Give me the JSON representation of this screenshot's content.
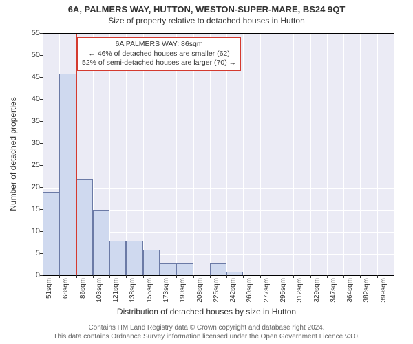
{
  "chart": {
    "title": "6A, PALMERS WAY, HUTTON, WESTON-SUPER-MARE, BS24 9QT",
    "subtitle": "Size of property relative to detached houses in Hutton",
    "type": "histogram",
    "ylabel": "Number of detached properties",
    "xlabel": "Distribution of detached houses by size in Hutton",
    "background_color": "#ebebf5",
    "grid_color": "#ffffff",
    "bar_fill": "#cfd9ef",
    "bar_border": "#6b7aa6",
    "reference_line_color": "#d43a2f",
    "reference_value_index": 2,
    "ylim": [
      0,
      55
    ],
    "ytick_step": 5,
    "yticks": [
      0,
      5,
      10,
      15,
      20,
      25,
      30,
      35,
      40,
      45,
      50,
      55
    ],
    "x_categories": [
      "51sqm",
      "68sqm",
      "86sqm",
      "103sqm",
      "121sqm",
      "138sqm",
      "155sqm",
      "173sqm",
      "190sqm",
      "208sqm",
      "225sqm",
      "242sqm",
      "260sqm",
      "277sqm",
      "295sqm",
      "312sqm",
      "329sqm",
      "347sqm",
      "364sqm",
      "382sqm",
      "399sqm"
    ],
    "values": [
      19,
      46,
      22,
      15,
      8,
      8,
      6,
      3,
      3,
      0,
      3,
      1,
      0,
      0,
      0,
      0,
      0,
      0,
      0,
      0
    ],
    "annotation": {
      "line1": "6A PALMERS WAY: 86sqm",
      "line2": "← 46% of detached houses are smaller (62)",
      "line3": "52% of semi-detached houses are larger (70) →"
    },
    "label_fontsize": 12,
    "tick_fontsize": 11,
    "footer_line1": "Contains HM Land Registry data © Crown copyright and database right 2024.",
    "footer_line2": "This data contains Ordnance Survey information licensed under the Open Government Licence v3.0."
  }
}
